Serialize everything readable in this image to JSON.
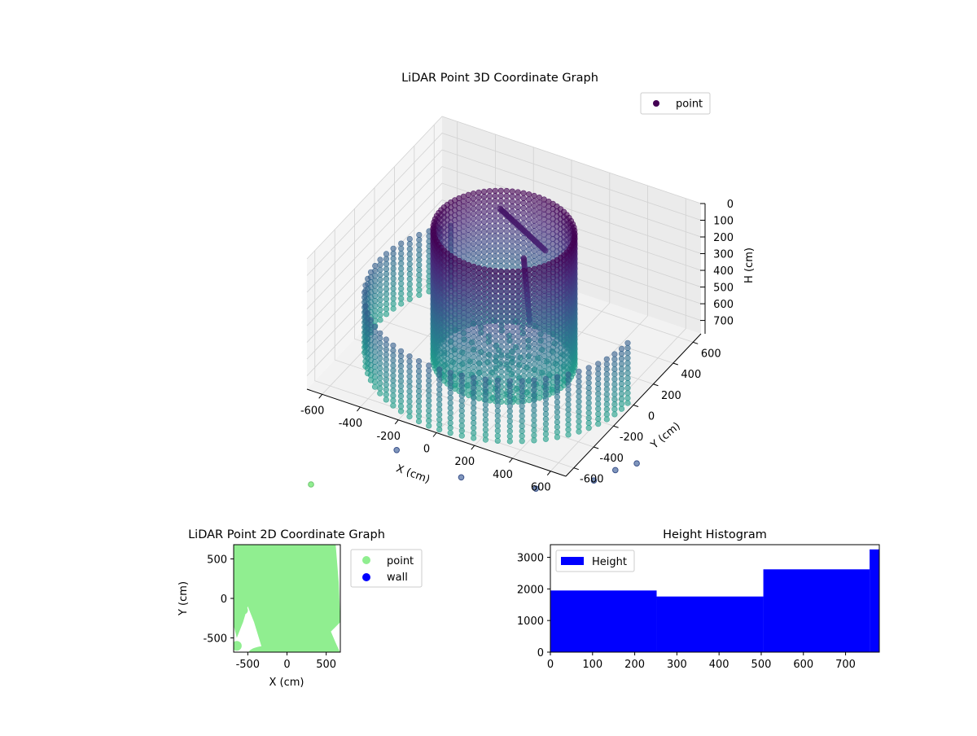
{
  "chart_data": [
    {
      "type": "scatter",
      "projection": "3d",
      "title": "LiDAR Point 3D Coordinate Graph",
      "xlabel": "X (cm)",
      "ylabel": "Y (cm)",
      "zlabel": "H (cm)",
      "x_ticks": [
        -600,
        -400,
        -200,
        0,
        200,
        400,
        600
      ],
      "y_ticks": [
        -600,
        -400,
        -200,
        0,
        200,
        400,
        600
      ],
      "z_ticks": [
        0,
        100,
        200,
        300,
        400,
        500,
        600,
        700
      ],
      "xlim": [
        -680,
        680
      ],
      "ylim": [
        -680,
        680
      ],
      "zlim": [
        0,
        780
      ],
      "z_inverted": true,
      "grid": true,
      "colormap": "viridis",
      "legend": {
        "position": "top-right",
        "entries": [
          {
            "label": "point",
            "color": "#440154"
          }
        ]
      },
      "series": [
        {
          "name": "point",
          "shape": "cylinder wall",
          "center": [
            0,
            0
          ],
          "radius": 330,
          "z_range": [
            0,
            780
          ]
        },
        {
          "name": "point",
          "shape": "outer wall arcs",
          "radius": 650,
          "z_range": [
            420,
            780
          ]
        },
        {
          "name": "point",
          "shape": "floor",
          "z": 770
        },
        {
          "name": "point",
          "shape": "interior structure",
          "x_range": [
            -150,
            150
          ],
          "y_range": [
            -50,
            250
          ],
          "z_range": [
            80,
            500
          ]
        }
      ],
      "outliers": [
        {
          "x": -240,
          "y": -620,
          "z": 770
        },
        {
          "x": 120,
          "y": -660,
          "z": 770
        },
        {
          "x": 460,
          "y": -560,
          "z": 770
        },
        {
          "x": 660,
          "y": -360,
          "z": 770
        },
        {
          "x": 700,
          "y": -220,
          "z": 780
        },
        {
          "x": 760,
          "y": -120,
          "z": 780
        }
      ]
    },
    {
      "type": "scatter",
      "title": "LiDAR Point 2D Coordinate Graph",
      "xlabel": "X (cm)",
      "ylabel": "Y (cm)",
      "x_ticks": [
        -500,
        0,
        500
      ],
      "y_ticks": [
        -500,
        0,
        500
      ],
      "xlim": [
        -680,
        680
      ],
      "ylim": [
        -680,
        680
      ],
      "legend": {
        "position": "outside-right",
        "entries": [
          {
            "label": "point",
            "color": "#90ee90"
          },
          {
            "label": "wall",
            "color": "#0000ff"
          }
        ]
      },
      "series": [
        {
          "name": "point",
          "color": "#90ee90",
          "coverage": "dense fill of nearly the entire plane"
        },
        {
          "name": "wall",
          "color": "#0000ff",
          "points": []
        }
      ]
    },
    {
      "type": "bar",
      "title": "Height Histogram",
      "xlabel": "",
      "ylabel": "",
      "x_ticks": [
        0,
        100,
        200,
        300,
        400,
        500,
        600,
        700
      ],
      "y_ticks": [
        0,
        1000,
        2000,
        3000
      ],
      "xlim": [
        0,
        780
      ],
      "ylim": [
        0,
        3400
      ],
      "legend": {
        "position": "top-left",
        "entries": [
          {
            "label": "Height",
            "color": "#0000ff"
          }
        ]
      },
      "bins": [
        {
          "x0": 0,
          "x1": 252,
          "count": 1950
        },
        {
          "x0": 252,
          "x1": 505,
          "count": 1760
        },
        {
          "x0": 505,
          "x1": 757,
          "count": 2620
        },
        {
          "x0": 757,
          "x1": 780,
          "count": 3250
        }
      ],
      "color": "#0000ff"
    }
  ]
}
